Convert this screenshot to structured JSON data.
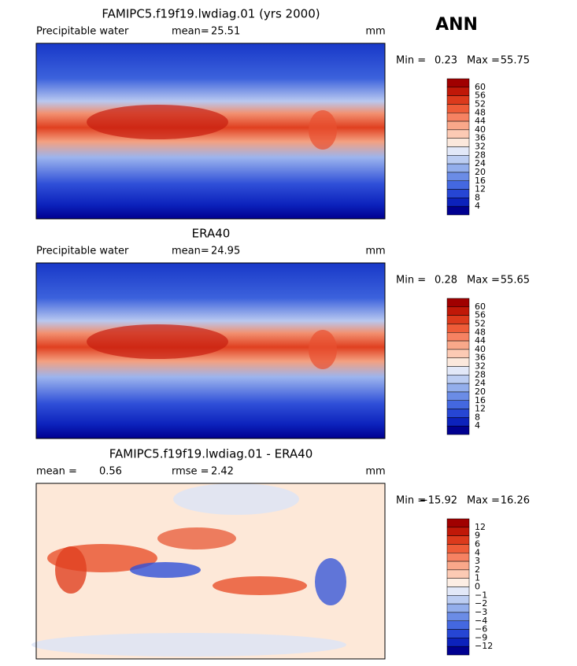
{
  "header": {
    "season": "ANN"
  },
  "panels": [
    {
      "title": "FAMIPC5.f19f19.lwdiag.01 (yrs 2000)",
      "left": [
        "Precipitable water"
      ],
      "center": [
        "mean=",
        "25.51"
      ],
      "units": "mm",
      "range": [
        "Min =",
        "0.23",
        "Max =",
        "55.75"
      ],
      "colorbar": {
        "labels": [
          "60",
          "56",
          "52",
          "48",
          "44",
          "40",
          "36",
          "32",
          "28",
          "24",
          "20",
          "16",
          "12",
          "8",
          "4"
        ],
        "colors": [
          "#a00000",
          "#c01808",
          "#dc3a1c",
          "#ee5c38",
          "#f68262",
          "#f9a88a",
          "#fccab4",
          "#fbe8dc",
          "#e2e8f8",
          "#bccdf2",
          "#93aeec",
          "#6b8ce6",
          "#4468e0",
          "#2646d4",
          "#0c22bc",
          "#000090"
        ]
      }
    },
    {
      "title": "ERA40",
      "left": [
        "Precipitable water"
      ],
      "center": [
        "mean=",
        "24.95"
      ],
      "units": "mm",
      "range": [
        "Min =",
        "0.28",
        "Max =",
        "55.65"
      ],
      "colorbar": {
        "labels": [
          "60",
          "56",
          "52",
          "48",
          "44",
          "40",
          "36",
          "32",
          "28",
          "24",
          "20",
          "16",
          "12",
          "8",
          "4"
        ],
        "colors": [
          "#a00000",
          "#c01808",
          "#dc3a1c",
          "#ee5c38",
          "#f68262",
          "#f9a88a",
          "#fccab4",
          "#fbe8dc",
          "#e2e8f8",
          "#bccdf2",
          "#93aeec",
          "#6b8ce6",
          "#4468e0",
          "#2646d4",
          "#0c22bc",
          "#000090"
        ]
      }
    },
    {
      "title": "FAMIPC5.f19f19.lwdiag.01 - ERA40",
      "left": [
        "mean =",
        "0.56"
      ],
      "center": [
        "rmse =",
        "2.42"
      ],
      "units": "mm",
      "range": [
        "Min =",
        "−15.92",
        "Max =",
        "16.26"
      ],
      "colorbar": {
        "labels": [
          "12",
          "9",
          "6",
          "4",
          "3",
          "2",
          "1",
          "0",
          "−1",
          "−2",
          "−3",
          "−4",
          "−6",
          "−9",
          "−12"
        ],
        "colors": [
          "#a00000",
          "#c01808",
          "#dc3a1c",
          "#ee5c38",
          "#f68262",
          "#f9a88a",
          "#fccab4",
          "#fdeee4",
          "#e2e8f8",
          "#bccdf2",
          "#93aeec",
          "#6b8ce6",
          "#4468e0",
          "#2646d4",
          "#0c22bc",
          "#000090"
        ]
      }
    }
  ]
}
